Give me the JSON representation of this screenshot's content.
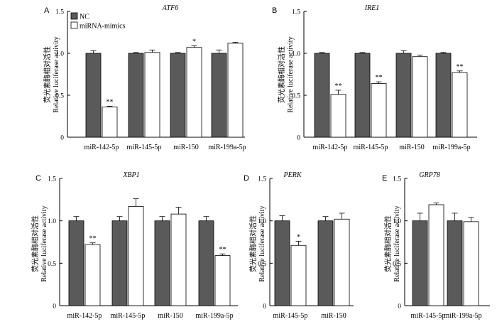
{
  "legend": {
    "items": [
      {
        "label": "NC",
        "color": "#5a5a5a"
      },
      {
        "label": "miRNA-mimics",
        "color": "#ffffff"
      }
    ]
  },
  "chart_data": [
    {
      "type": "bar",
      "panel": "A",
      "title": "ATF6",
      "ylabel_cn": "荧光素酶相对活性",
      "ylabel": "Relative luciferase activity",
      "ylim": [
        0,
        1.5
      ],
      "yticks": [
        "0",
        "0.5",
        "1.0",
        "1.5"
      ],
      "categories": [
        "miR-142-5p",
        "miR-145-5p",
        "miR-150",
        "miR-199a-5p"
      ],
      "series": [
        {
          "name": "NC",
          "values": [
            1.0,
            1.0,
            1.0,
            1.0
          ],
          "errors": [
            0.03,
            0.01,
            0.01,
            0.04
          ]
        },
        {
          "name": "miRNA-mimics",
          "values": [
            0.36,
            1.01,
            1.07,
            1.12
          ],
          "errors": [
            0.01,
            0.03,
            0.02,
            0.01
          ]
        }
      ],
      "significance": [
        "**",
        "",
        "*",
        ""
      ]
    },
    {
      "type": "bar",
      "panel": "B",
      "title": "IRE1",
      "ylabel_cn": "荧光素酶相对活性",
      "ylabel": "Relative luciferase activity",
      "ylim": [
        0,
        1.5
      ],
      "yticks": [
        "0",
        "0.5",
        "1.0",
        "1.5"
      ],
      "categories": [
        "miR-142-5p",
        "miR-145-5p",
        "miR-150",
        "miR-199a-5p"
      ],
      "series": [
        {
          "name": "NC",
          "values": [
            1.0,
            1.0,
            1.0,
            1.0
          ],
          "errors": [
            0.01,
            0.01,
            0.03,
            0.01
          ]
        },
        {
          "name": "miRNA-mimics",
          "values": [
            0.51,
            0.64,
            0.96,
            0.77
          ],
          "errors": [
            0.05,
            0.02,
            0.02,
            0.02
          ]
        }
      ],
      "significance": [
        "**",
        "**",
        "",
        "**"
      ]
    },
    {
      "type": "bar",
      "panel": "C",
      "title": "XBP1",
      "ylabel_cn": "荧光素酶相对活性",
      "ylabel": "Relative luciferase activity",
      "ylim": [
        0,
        1.5
      ],
      "yticks": [
        "0",
        "0.5",
        "1.0",
        "1.5"
      ],
      "categories": [
        "miR-142-5p",
        "miR-145-5p",
        "miR-150",
        "miR-199a-5p"
      ],
      "series": [
        {
          "name": "NC",
          "values": [
            1.0,
            1.0,
            1.0,
            1.0
          ],
          "errors": [
            0.05,
            0.05,
            0.05,
            0.05
          ]
        },
        {
          "name": "miRNA-mimics",
          "values": [
            0.72,
            1.17,
            1.08,
            0.59
          ],
          "errors": [
            0.02,
            0.09,
            0.08,
            0.02
          ]
        }
      ],
      "significance": [
        "**",
        "",
        "",
        "**"
      ]
    },
    {
      "type": "bar",
      "panel": "D",
      "title": "PERK",
      "ylabel_cn": "荧光素酶相对活性",
      "ylabel": "Relative luciferase activity",
      "ylim": [
        0,
        1.5
      ],
      "yticks": [
        "0",
        "0.5",
        "1.0",
        "1.5"
      ],
      "categories": [
        "miR-145-5p",
        "miR-150"
      ],
      "series": [
        {
          "name": "NC",
          "values": [
            1.0,
            1.0
          ],
          "errors": [
            0.06,
            0.05
          ]
        },
        {
          "name": "miRNA-mimics",
          "values": [
            0.71,
            1.02
          ],
          "errors": [
            0.05,
            0.07
          ]
        }
      ],
      "significance": [
        "*",
        ""
      ]
    },
    {
      "type": "bar",
      "panel": "E",
      "title": "GRP78",
      "ylabel_cn": "荧光素酶相对活性",
      "ylabel": "Relative luciferase activity",
      "ylim": [
        0,
        1.5
      ],
      "yticks": [
        "0",
        "0.5",
        "1.0",
        "1.5"
      ],
      "categories": [
        "miR-145-5p",
        "miR-199a-5p"
      ],
      "series": [
        {
          "name": "NC",
          "values": [
            1.0,
            1.0
          ],
          "errors": [
            0.09,
            0.09
          ]
        },
        {
          "name": "miRNA-mimics",
          "values": [
            1.19,
            0.99
          ],
          "errors": [
            0.02,
            0.05
          ]
        }
      ],
      "significance": [
        "",
        ""
      ]
    }
  ]
}
